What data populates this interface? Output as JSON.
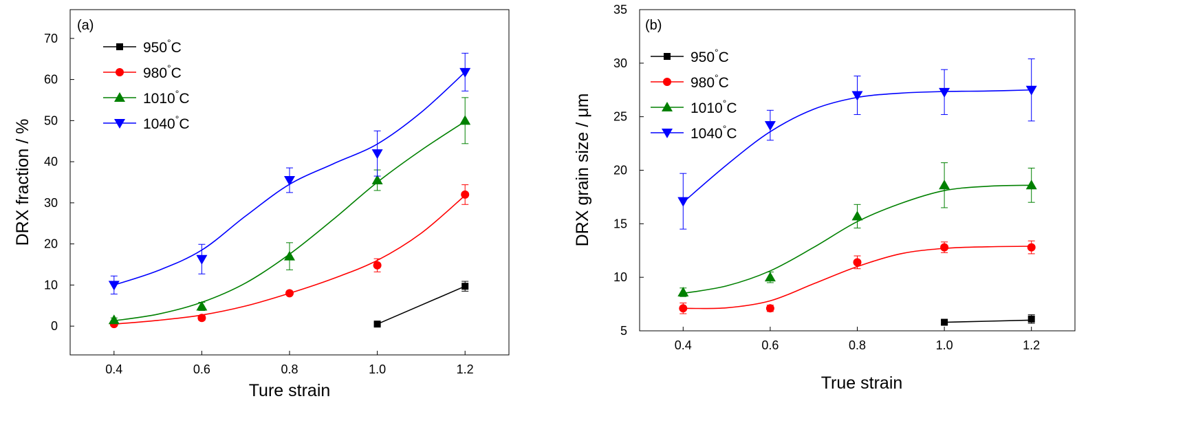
{
  "chart_data": [
    {
      "type": "line",
      "panel_label": "(a)",
      "xlabel": "Ture strain",
      "ylabel": "DRX fraction / %",
      "xlim": [
        0.3,
        1.3
      ],
      "ylim": [
        -7,
        77
      ],
      "xticks": [
        0.4,
        0.6,
        0.8,
        1.0,
        1.2
      ],
      "xtick_labels": [
        "0.4",
        "0.6",
        "0.8",
        "1.0",
        "1.2"
      ],
      "yticks": [
        0,
        10,
        20,
        30,
        40,
        50,
        60,
        70
      ],
      "ytick_labels": [
        "0",
        "10",
        "20",
        "30",
        "40",
        "50",
        "60",
        "70"
      ],
      "legend_position": "top-left",
      "series": [
        {
          "name": "950",
          "unit": "°C",
          "color": "#000000",
          "marker": "square",
          "x": [
            1.0,
            1.2
          ],
          "y": [
            0.5,
            9.7
          ],
          "err": [
            0.3,
            1.2
          ],
          "curve_x": [
            1.0,
            1.2
          ],
          "curve_y": [
            0.5,
            9.7
          ]
        },
        {
          "name": "980",
          "unit": "°C",
          "color": "#ff0000",
          "marker": "circle",
          "x": [
            0.4,
            0.6,
            0.8,
            1.0,
            1.2
          ],
          "y": [
            0.5,
            2.0,
            8.0,
            14.8,
            32.0
          ],
          "err": [
            0.4,
            0.6,
            0.5,
            1.6,
            2.4
          ],
          "curve_x": [
            0.4,
            0.5,
            0.6,
            0.7,
            0.8,
            0.9,
            1.0,
            1.1,
            1.2
          ],
          "curve_y": [
            0.5,
            1.4,
            2.7,
            4.9,
            8.0,
            11.6,
            16.0,
            22.6,
            31.8
          ]
        },
        {
          "name": "1010",
          "unit": "°C",
          "color": "#008000",
          "marker": "triangle-up",
          "x": [
            0.4,
            0.6,
            0.8,
            1.0,
            1.2
          ],
          "y": [
            1.5,
            4.8,
            17.0,
            35.5,
            50.0
          ],
          "err": [
            0.5,
            1.0,
            3.3,
            2.5,
            5.6
          ],
          "curve_x": [
            0.4,
            0.5,
            0.6,
            0.7,
            0.8,
            0.9,
            1.0,
            1.1,
            1.2
          ],
          "curve_y": [
            1.3,
            2.9,
            5.8,
            10.5,
            17.5,
            26.0,
            35.0,
            42.8,
            49.8
          ]
        },
        {
          "name": "1040",
          "unit": "°C",
          "color": "#0000ff",
          "marker": "triangle-down",
          "x": [
            0.4,
            0.6,
            0.8,
            1.0,
            1.2
          ],
          "y": [
            10.0,
            16.3,
            35.5,
            42.0,
            61.8
          ],
          "err": [
            2.2,
            3.6,
            3.0,
            5.5,
            4.6
          ],
          "curve_x": [
            0.4,
            0.5,
            0.6,
            0.7,
            0.8,
            0.9,
            1.0,
            1.1,
            1.2
          ],
          "curve_y": [
            10.0,
            13.5,
            18.5,
            26.8,
            34.5,
            39.5,
            44.3,
            52.0,
            61.8
          ]
        }
      ]
    },
    {
      "type": "line",
      "panel_label": "(b)",
      "xlabel": "True strain",
      "ylabel": "DRX grain size / μm",
      "xlim": [
        0.3,
        1.3
      ],
      "ylim": [
        5,
        35
      ],
      "xticks": [
        0.4,
        0.6,
        0.8,
        1.0,
        1.2
      ],
      "xtick_labels": [
        "0.4",
        "0.6",
        "0.8",
        "1.0",
        "1.2"
      ],
      "yticks": [
        5,
        10,
        15,
        20,
        25,
        30,
        35
      ],
      "ytick_labels": [
        "5",
        "10",
        "15",
        "20",
        "25",
        "30",
        "35"
      ],
      "legend_position": "top-left",
      "series": [
        {
          "name": "950",
          "unit": "°C",
          "color": "#000000",
          "marker": "square",
          "x": [
            1.0,
            1.2
          ],
          "y": [
            5.8,
            6.1
          ],
          "err": [
            0.2,
            0.4
          ],
          "curve_x": [
            1.0,
            1.2
          ],
          "curve_y": [
            5.8,
            6.0
          ]
        },
        {
          "name": "980",
          "unit": "°C",
          "color": "#ff0000",
          "marker": "circle",
          "x": [
            0.4,
            0.6,
            0.8,
            1.0,
            1.2
          ],
          "y": [
            7.1,
            7.1,
            11.4,
            12.8,
            12.8
          ],
          "err": [
            0.5,
            0.3,
            0.6,
            0.5,
            0.6
          ],
          "curve_x": [
            0.4,
            0.5,
            0.6,
            0.7,
            0.8,
            0.9,
            1.0,
            1.1,
            1.2
          ],
          "curve_y": [
            7.1,
            7.15,
            7.8,
            9.4,
            11.0,
            12.2,
            12.7,
            12.85,
            12.9
          ]
        },
        {
          "name": "1010",
          "unit": "°C",
          "color": "#008000",
          "marker": "triangle-up",
          "x": [
            0.4,
            0.6,
            0.8,
            1.0,
            1.2
          ],
          "y": [
            8.6,
            10.0,
            15.7,
            18.6,
            18.6
          ],
          "err": [
            0.4,
            0.5,
            1.1,
            2.1,
            1.6
          ],
          "curve_x": [
            0.4,
            0.5,
            0.6,
            0.7,
            0.8,
            0.9,
            1.0,
            1.1,
            1.2
          ],
          "curve_y": [
            8.5,
            9.2,
            10.6,
            12.8,
            15.2,
            16.9,
            18.1,
            18.5,
            18.6
          ]
        },
        {
          "name": "1040",
          "unit": "°C",
          "color": "#0000ff",
          "marker": "triangle-down",
          "x": [
            0.4,
            0.6,
            0.8,
            1.0,
            1.2
          ],
          "y": [
            17.1,
            24.2,
            27.0,
            27.3,
            27.5
          ],
          "err": [
            2.6,
            1.4,
            1.8,
            2.1,
            2.9
          ],
          "curve_x": [
            0.4,
            0.5,
            0.6,
            0.7,
            0.8,
            0.9,
            1.0,
            1.1,
            1.2
          ],
          "curve_y": [
            17.0,
            20.5,
            23.6,
            25.7,
            26.8,
            27.2,
            27.35,
            27.4,
            27.5
          ]
        }
      ]
    }
  ]
}
